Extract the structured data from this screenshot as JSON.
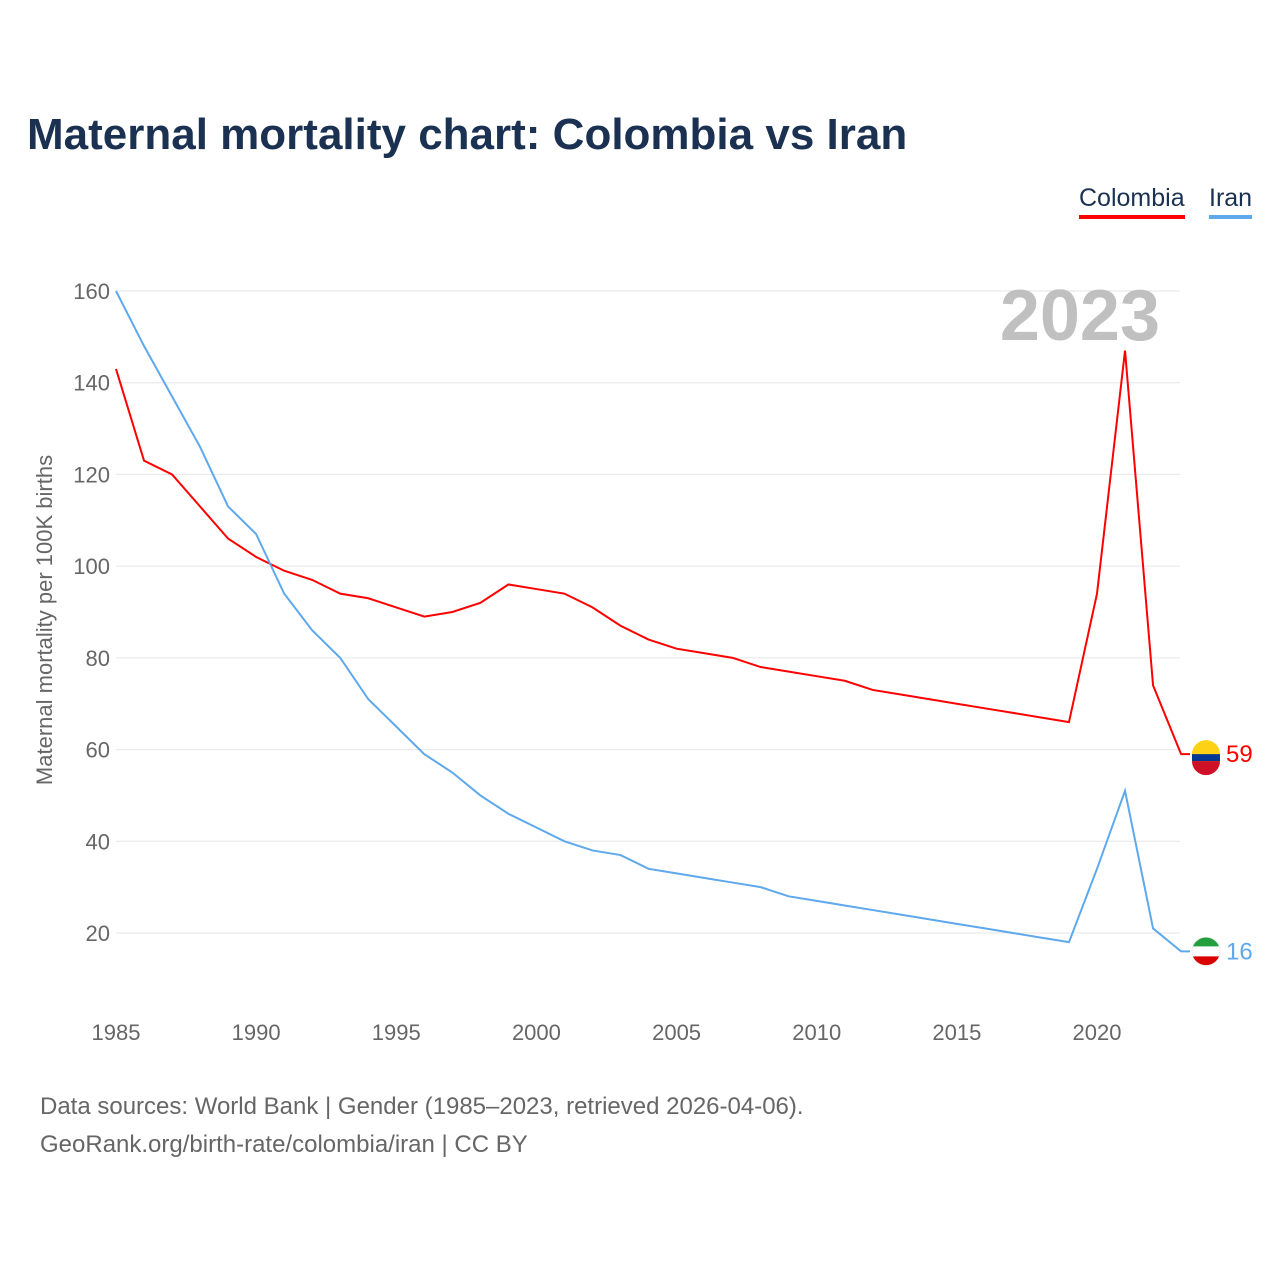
{
  "title": "Maternal mortality chart: Colombia vs Iran",
  "legend": [
    "Colombia",
    "Iran"
  ],
  "footer": {
    "line1": "Data sources: World Bank | Gender (1985–2023, retrieved 2026-04-06).",
    "line2": "GeoRank.org/birth-rate/colombia/iran | CC BY"
  },
  "chart_data": {
    "type": "line",
    "title": "Maternal mortality chart: Colombia vs Iran",
    "xlabel": "",
    "ylabel": "Maternal mortality per 100K births",
    "year_label": "2023",
    "xlim": [
      1985,
      2023
    ],
    "ylim": [
      10,
      160
    ],
    "x_ticks": [
      1985,
      1990,
      1995,
      2000,
      2005,
      2010,
      2015,
      2020
    ],
    "y_ticks": [
      20,
      40,
      60,
      80,
      100,
      120,
      140,
      160
    ],
    "x": [
      1985,
      1986,
      1987,
      1988,
      1989,
      1990,
      1991,
      1992,
      1993,
      1994,
      1995,
      1996,
      1997,
      1998,
      1999,
      2000,
      2001,
      2002,
      2003,
      2004,
      2005,
      2006,
      2007,
      2008,
      2009,
      2010,
      2011,
      2012,
      2013,
      2014,
      2015,
      2016,
      2017,
      2018,
      2019,
      2020,
      2021,
      2022,
      2023
    ],
    "series": [
      {
        "name": "Colombia",
        "color": "#ff0000",
        "end_label": "59",
        "values": [
          143,
          123,
          120,
          113,
          106,
          102,
          99,
          97,
          94,
          93,
          91,
          89,
          90,
          92,
          96,
          95,
          94,
          91,
          87,
          84,
          82,
          81,
          80,
          78,
          77,
          76,
          75,
          73,
          72,
          71,
          70,
          69,
          68,
          67,
          66,
          94,
          147,
          74,
          59
        ]
      },
      {
        "name": "Iran",
        "color": "#5ea8ec",
        "end_label": "16",
        "values": [
          160,
          148,
          137,
          126,
          113,
          107,
          94,
          86,
          80,
          71,
          65,
          59,
          55,
          50,
          46,
          43,
          40,
          38,
          37,
          34,
          33,
          32,
          31,
          30,
          28,
          27,
          26,
          25,
          24,
          23,
          22,
          21,
          20,
          19,
          18,
          34,
          51,
          21,
          16
        ]
      }
    ]
  }
}
